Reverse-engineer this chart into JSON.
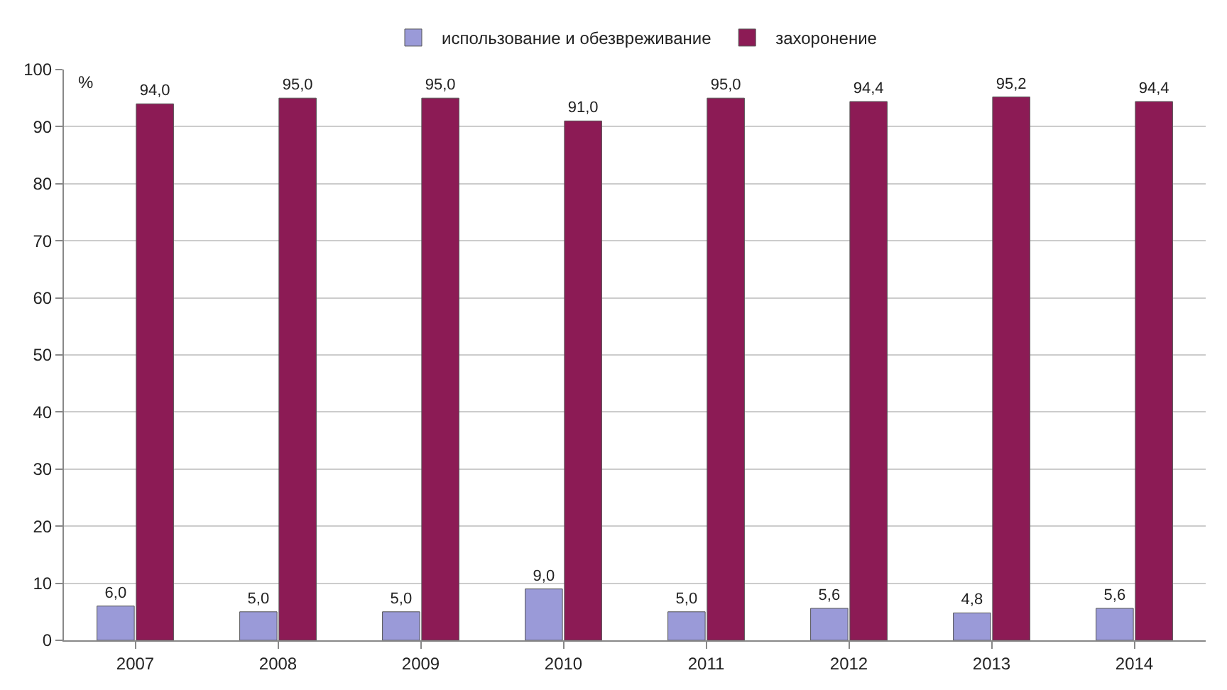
{
  "chart_data": {
    "type": "bar",
    "categories": [
      "2007",
      "2008",
      "2009",
      "2010",
      "2011",
      "2012",
      "2013",
      "2014"
    ],
    "series": [
      {
        "name": "использование и обезвреживание",
        "color": "#9a9ad8",
        "values": [
          6.0,
          5.0,
          5.0,
          9.0,
          5.0,
          5.6,
          4.8,
          5.6
        ],
        "value_labels": [
          "6,0",
          "5,0",
          "5,0",
          "9,0",
          "5,0",
          "5,6",
          "4,8",
          "5,6"
        ]
      },
      {
        "name": "захоронение",
        "color": "#8c1b55",
        "values": [
          94.0,
          95.0,
          95.0,
          91.0,
          95.0,
          94.4,
          95.2,
          94.4
        ],
        "value_labels": [
          "94,0",
          "95,0",
          "95,0",
          "91,0",
          "95,0",
          "94,4",
          "95,2",
          "94,4"
        ]
      }
    ],
    "ylim": [
      0,
      100
    ],
    "yticks": [
      0,
      10,
      20,
      30,
      40,
      50,
      60,
      70,
      80,
      90,
      100
    ],
    "grid": "y",
    "legend": "top",
    "annotations": [
      "%"
    ]
  }
}
